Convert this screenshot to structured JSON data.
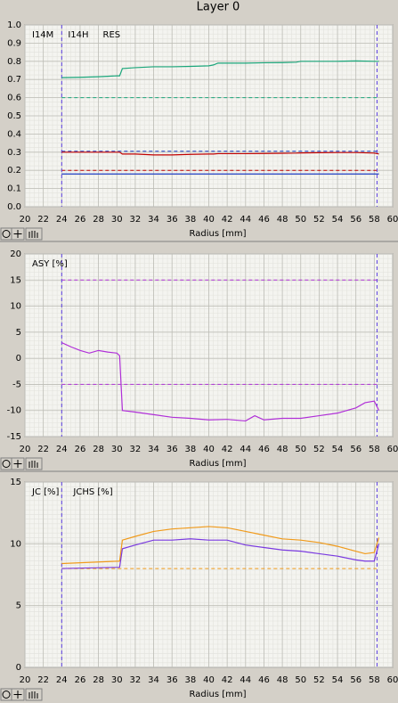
{
  "title": "Layer 0",
  "chart_data": [
    {
      "type": "line",
      "xlabel": "Radius [mm]",
      "x": [
        24,
        26,
        28,
        30,
        30.3,
        30.6,
        32,
        34,
        36,
        38,
        40,
        40.5,
        41,
        44,
        46,
        48,
        49.5,
        50,
        52,
        54,
        56,
        58,
        58.5
      ],
      "series": [
        {
          "name": "I14M",
          "color": "#1aa67a",
          "values": [
            0.71,
            0.712,
            0.715,
            0.72,
            0.72,
            0.76,
            0.765,
            0.77,
            0.77,
            0.772,
            0.775,
            0.78,
            0.79,
            0.79,
            0.792,
            0.793,
            0.795,
            0.8,
            0.8,
            0.8,
            0.802,
            0.8,
            0.8
          ]
        },
        {
          "name": "I14H",
          "color": "#1f3fc4",
          "values": [
            0.18,
            0.18,
            0.18,
            0.18,
            0.18,
            0.18,
            0.18,
            0.18,
            0.18,
            0.18,
            0.18,
            0.18,
            0.18,
            0.18,
            0.18,
            0.18,
            0.18,
            0.18,
            0.18,
            0.18,
            0.18,
            0.18,
            0.18
          ]
        },
        {
          "name": "RES",
          "color": "#c00000",
          "values": [
            0.3,
            0.3,
            0.3,
            0.3,
            0.3,
            0.29,
            0.29,
            0.285,
            0.285,
            0.288,
            0.29,
            0.29,
            0.292,
            0.292,
            0.293,
            0.294,
            0.295,
            0.296,
            0.297,
            0.298,
            0.298,
            0.295,
            0.29
          ]
        }
      ],
      "hlines": [
        {
          "value": 0.6,
          "color": "#1aa67a"
        },
        {
          "value": 0.305,
          "color": "#1f3fc4"
        },
        {
          "value": 0.2,
          "color": "#c00000"
        }
      ],
      "vlines": [
        24,
        58.3
      ],
      "xlim": [
        20,
        60
      ],
      "xticks": [
        20,
        22,
        24,
        26,
        28,
        30,
        32,
        34,
        36,
        38,
        40,
        42,
        44,
        46,
        48,
        50,
        52,
        54,
        56,
        58,
        60
      ],
      "ylim": [
        0,
        1
      ],
      "yticks": [
        {
          "value": 0,
          "label": "0.0"
        },
        0.1,
        0.2,
        0.3,
        0.4,
        0.5,
        0.6,
        0.7,
        0.8,
        0.9,
        {
          "value": 1,
          "label": "1.0"
        }
      ],
      "grid": true
    },
    {
      "type": "line",
      "xlabel": "Radius [mm]",
      "x": [
        24,
        25,
        26,
        27,
        28,
        29,
        30,
        30.3,
        30.6,
        32,
        34,
        36,
        38,
        40,
        42,
        44,
        45,
        46,
        48,
        50,
        52,
        54,
        56,
        57,
        58,
        58.5
      ],
      "series": [
        {
          "name": "ASY [%]",
          "color": "#b030d8",
          "values": [
            3,
            2.2,
            1.5,
            1.0,
            1.5,
            1.2,
            1.0,
            0.5,
            -10,
            -10.3,
            -10.8,
            -11.3,
            -11.5,
            -11.8,
            -11.7,
            -12,
            -11,
            -11.8,
            -11.5,
            -11.5,
            -11,
            -10.5,
            -9.5,
            -8.5,
            -8.2,
            -10
          ]
        }
      ],
      "hlines": [
        {
          "value": 15,
          "color": "#b030d8"
        },
        {
          "value": -5,
          "color": "#b030d8"
        }
      ],
      "vlines": [
        24,
        58.3
      ],
      "xlim": [
        20,
        60
      ],
      "xticks": [
        20,
        22,
        24,
        26,
        28,
        30,
        32,
        34,
        36,
        38,
        40,
        42,
        44,
        46,
        48,
        50,
        52,
        54,
        56,
        58,
        60
      ],
      "ylim": [
        -15,
        20
      ],
      "yticks": [
        -15,
        -10,
        -5,
        0,
        5,
        10,
        15,
        20
      ],
      "grid": true
    },
    {
      "type": "line",
      "xlabel": "Radius [mm]",
      "x": [
        24,
        30.3,
        30.6,
        32,
        34,
        36,
        38,
        40,
        42,
        44,
        46,
        48,
        50,
        52,
        54,
        56,
        57,
        58,
        58.5
      ],
      "series": [
        {
          "name": "JC [%]",
          "color": "#f09a1a",
          "values": [
            8.4,
            8.6,
            10.3,
            10.6,
            11,
            11.2,
            11.3,
            11.4,
            11.3,
            11,
            10.7,
            10.4,
            10.3,
            10.1,
            9.8,
            9.4,
            9.2,
            9.3,
            10.5
          ]
        },
        {
          "name": "JCHS [%]",
          "color": "#7a3ae0",
          "values": [
            8.0,
            8.1,
            9.6,
            9.9,
            10.3,
            10.3,
            10.4,
            10.3,
            10.3,
            9.9,
            9.7,
            9.5,
            9.4,
            9.2,
            9.0,
            8.7,
            8.6,
            8.6,
            10
          ]
        }
      ],
      "hlines": [
        {
          "value": 8,
          "color": "#f09a1a"
        }
      ],
      "vlines": [
        24,
        58.3
      ],
      "xlim": [
        20,
        60
      ],
      "xticks": [
        20,
        22,
        24,
        26,
        28,
        30,
        32,
        34,
        36,
        38,
        40,
        42,
        44,
        46,
        48,
        50,
        52,
        54,
        56,
        58,
        60
      ],
      "ylim": [
        0,
        15
      ],
      "yticks": [
        0,
        5,
        10,
        15
      ],
      "grid": true
    }
  ]
}
